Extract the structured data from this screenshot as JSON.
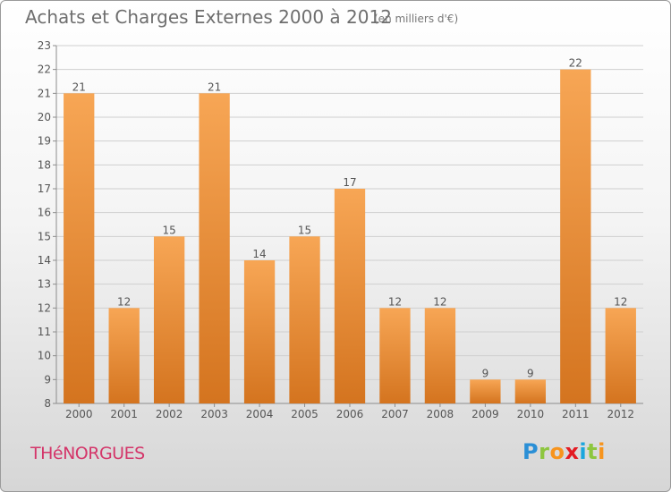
{
  "title": "Achats et Charges Externes 2000 à 2012",
  "subtitle": "(en milliers d'€)",
  "location": "THéNORGUES",
  "logo": {
    "text": "Proxiti",
    "letters": [
      "P",
      "r",
      "o",
      "x",
      "i",
      "t",
      "i"
    ],
    "colors": [
      "#2a8fd6",
      "#8dc63f",
      "#f7941d",
      "#e31b23",
      "#1aa6de",
      "#8dc63f",
      "#f7941d"
    ]
  },
  "colors": {
    "bar_light": "#f7a655",
    "bar_dark": "#d4741f",
    "grid": "#cfcfcf",
    "axis": "#8c8c8c",
    "text": "#555555"
  },
  "chart_data": {
    "type": "bar",
    "title": "Achats et Charges Externes 2000 à 2012",
    "subtitle": "(en milliers d'€)",
    "categories": [
      "2000",
      "2001",
      "2002",
      "2003",
      "2004",
      "2005",
      "2006",
      "2007",
      "2008",
      "2009",
      "2010",
      "2011",
      "2012"
    ],
    "values": [
      21,
      12,
      15,
      21,
      14,
      15,
      17,
      12,
      12,
      9,
      9,
      22,
      12
    ],
    "ylim": [
      8,
      23
    ],
    "yticks": [
      8,
      9,
      10,
      11,
      12,
      13,
      14,
      15,
      16,
      17,
      18,
      19,
      20,
      21,
      22,
      23
    ],
    "grid": true,
    "data_labels": true,
    "legend": "none"
  }
}
